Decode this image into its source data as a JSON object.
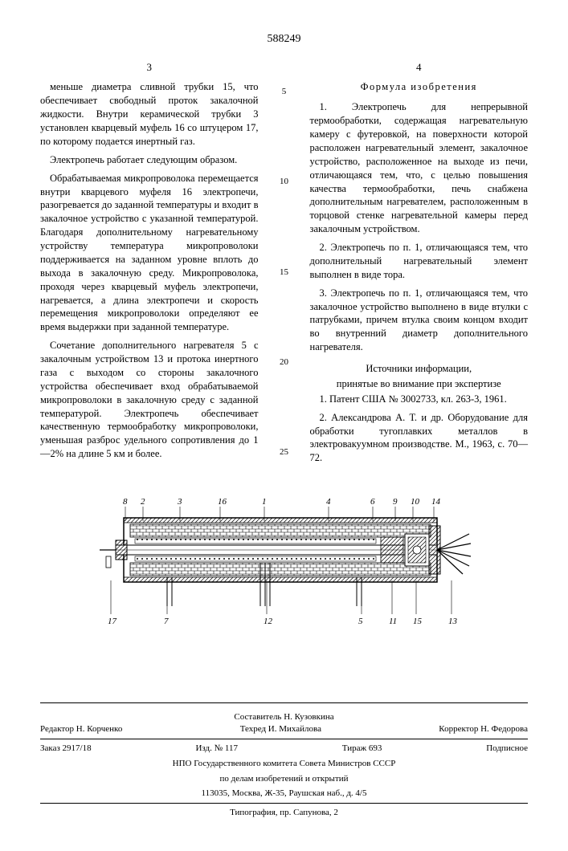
{
  "patent_number": "588249",
  "page_left": "3",
  "page_right": "4",
  "line_numbers": [
    "5",
    "10",
    "15",
    "20",
    "25"
  ],
  "col_left": {
    "p1": "меньше диаметра сливной трубки 15, что обеспечивает свободный проток закалочной жидкости. Внутри керамической трубки 3 установлен кварцевый муфель 16 со штуцером 17, по которому подается инертный газ.",
    "p2": "Электропечь работает следующим образом.",
    "p3": "Обрабатываемая микропроволока перемещается внутри кварцевого муфеля 16 электропечи, разогревается до заданной температуры и входит в закалочное устройство с указанной температурой. Благодаря дополнительному нагревательному устройству температура микропроволоки поддерживается на заданном уровне вплоть до выхода в закалочную среду. Микропроволока, проходя через кварцевый муфель электропечи, нагревается, а длина электропечи и скорость перемещения микропроволоки определяют ее время выдержки при заданной температуре.",
    "p4": "Сочетание дополнительного нагревателя 5 с закалочным устройством 13 и протока инертного газа с выходом со стороны закалочного устройства обеспечивает вход обрабатываемой микропроволоки в закалочную среду с заданной температурой. Электропечь обеспечивает качественную термообработку микропроволоки, уменьшая разброс удельного сопротивления до 1—2% на длине 5 км и более."
  },
  "col_right": {
    "claims_header": "Формула изобретения",
    "c1": "1. Электропечь для непрерывной термообработки, содержащая нагревательную камеру с футеровкой, на поверхности которой расположен нагревательный элемент, закалочное устройство, расположенное на выходе из печи, отличающаяся тем, что, с целью повышения качества термообработки, печь снабжена дополнительным нагревателем, расположенным в торцовой стенке нагревательной камеры перед закалочным устройством.",
    "c2": "2. Электропечь по п. 1, отличающаяся тем, что дополнительный нагревательный элемент выполнен в виде тора.",
    "c3": "3. Электропечь по п. 1, отличающаяся тем, что закалочное устройство выполнено в виде втулки с патрубками, причем втулка своим концом входит во внутренний диаметр дополнительного нагревателя.",
    "sources_header": "Источники информации,",
    "sources_sub": "принятые во внимание при экспертизе",
    "s1": "1. Патент США № 3002733, кл. 263-3, 1961.",
    "s2": "2. Александрова А. Т. и др. Оборудование для обработки тугоплавких металлов в электровакуумном производстве. М., 1963, с. 70—72."
  },
  "diagram": {
    "labels_top": [
      "8",
      "2",
      "3",
      "16",
      "1",
      "4",
      "6",
      "9",
      "10",
      "14"
    ],
    "labels_top_x": [
      42,
      64,
      110,
      160,
      215,
      295,
      350,
      378,
      400,
      426
    ],
    "labels_bottom": [
      "17",
      "7",
      "12",
      "5",
      "11",
      "15",
      "13"
    ],
    "labels_bottom_x": [
      24,
      94,
      218,
      336,
      374,
      404,
      448
    ],
    "stroke": "#000000",
    "hatch_spacing": 5
  },
  "footer": {
    "compiler": "Составитель Н. Кузовкина",
    "editor": "Редактор Н. Корченко",
    "tech": "Техред И. Михайлова",
    "corrector": "Корректор Н. Федорова",
    "order": "Заказ 2917/18",
    "izd": "Изд. № 117",
    "tirazh": "Тираж 693",
    "sub": "Подписное",
    "org1": "НПО Государственного комитета Совета Министров СССР",
    "org2": "по делам изобретений и открытий",
    "addr": "113035, Москва, Ж-35, Раушская наб., д. 4/5",
    "print": "Типография, пр. Сапунова, 2"
  }
}
